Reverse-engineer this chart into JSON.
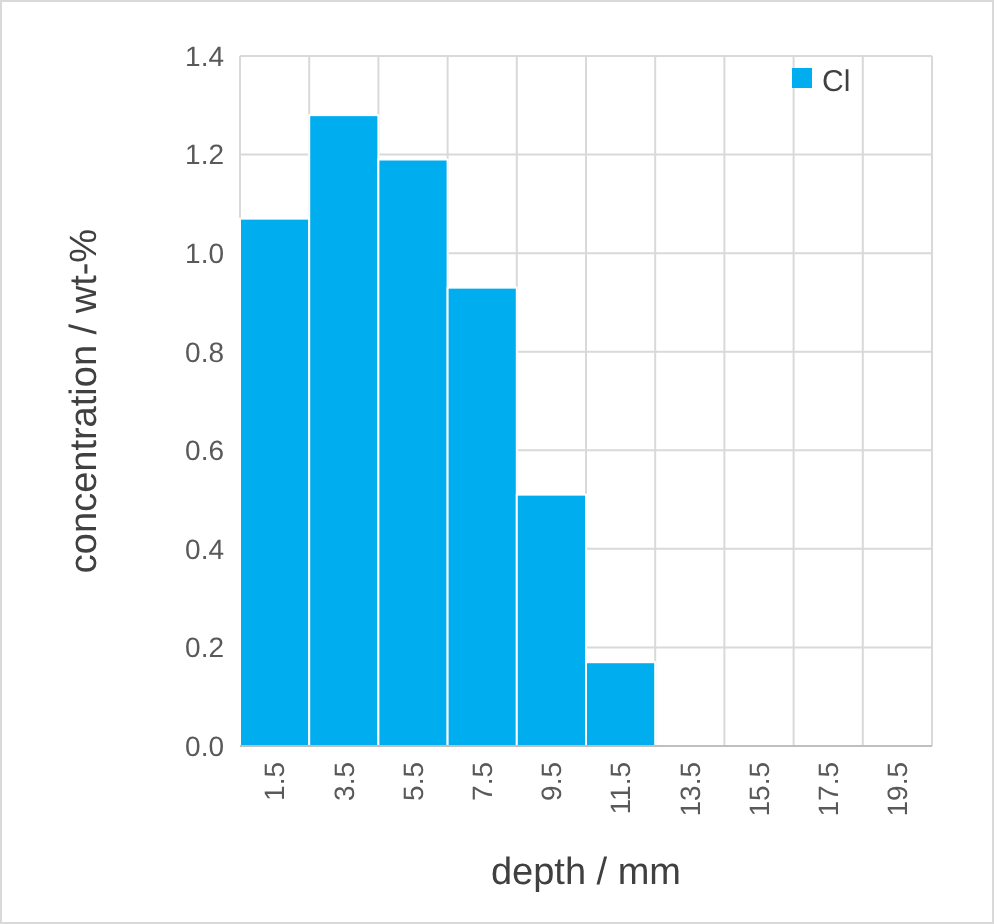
{
  "chart_data": {
    "type": "bar",
    "xlabel": "depth / mm",
    "ylabel": "concentration / wt-%",
    "categories": [
      "1.5",
      "3.5",
      "5.5",
      "7.5",
      "9.5",
      "11.5",
      "13.5",
      "15.5",
      "17.5",
      "19.5"
    ],
    "series": [
      {
        "name": "Cl",
        "color": "#00aeef",
        "values": [
          1.07,
          1.28,
          1.19,
          0.93,
          0.51,
          0.17,
          0,
          0,
          0,
          0
        ]
      }
    ],
    "ylim": [
      0,
      1.4
    ],
    "yticks": [
      {
        "value": 0,
        "label": "0.0"
      },
      {
        "value": 0.2,
        "label": "0.2"
      },
      {
        "value": 0.4,
        "label": "0.4"
      },
      {
        "value": 0.6,
        "label": "0.6"
      },
      {
        "value": 0.8,
        "label": "0.8"
      },
      {
        "value": 1,
        "label": "1.0"
      },
      {
        "value": 1.2,
        "label": "1.2"
      },
      {
        "value": 1.4,
        "label": "1.4"
      }
    ],
    "grid": true,
    "legend": "top right"
  }
}
